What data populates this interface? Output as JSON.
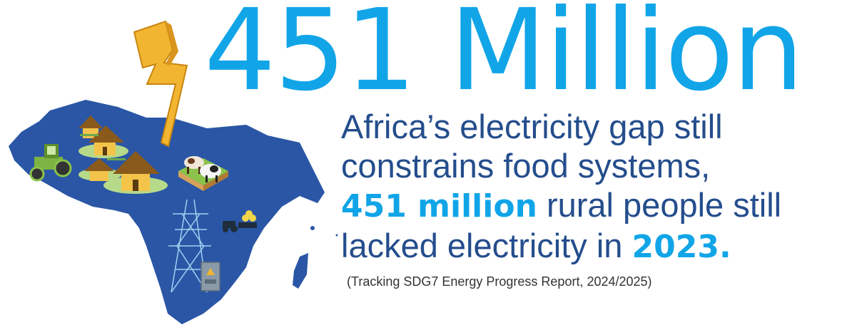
{
  "headline": {
    "text": "451 Million"
  },
  "body": {
    "line1": "Africa’s electricity gap still",
    "line2": "constrains food systems,",
    "line3_highlight": "451 million",
    "line3_rest": " rural people still",
    "line4_prefix": "lacked electricity in ",
    "line4_highlight": "2023."
  },
  "source": {
    "text": "(Tracking SDG7 Energy Progress Report, 2024/2025)"
  },
  "colors": {
    "headline": "#11a5e8",
    "body_text": "#244d8c",
    "highlight": "#11a5e8",
    "source": "#333333",
    "africa_map": "#2a56a5",
    "bolt": "#f2b531",
    "pylon": "#9fd0f2"
  },
  "illustration": {
    "icons": [
      "africa-map-icon",
      "lightning-bolt-icon",
      "hut-village-icon",
      "tractor-icon",
      "cows-icon",
      "power-pylon-icon",
      "electric-meter-icon",
      "tractor-hay-icon"
    ]
  }
}
